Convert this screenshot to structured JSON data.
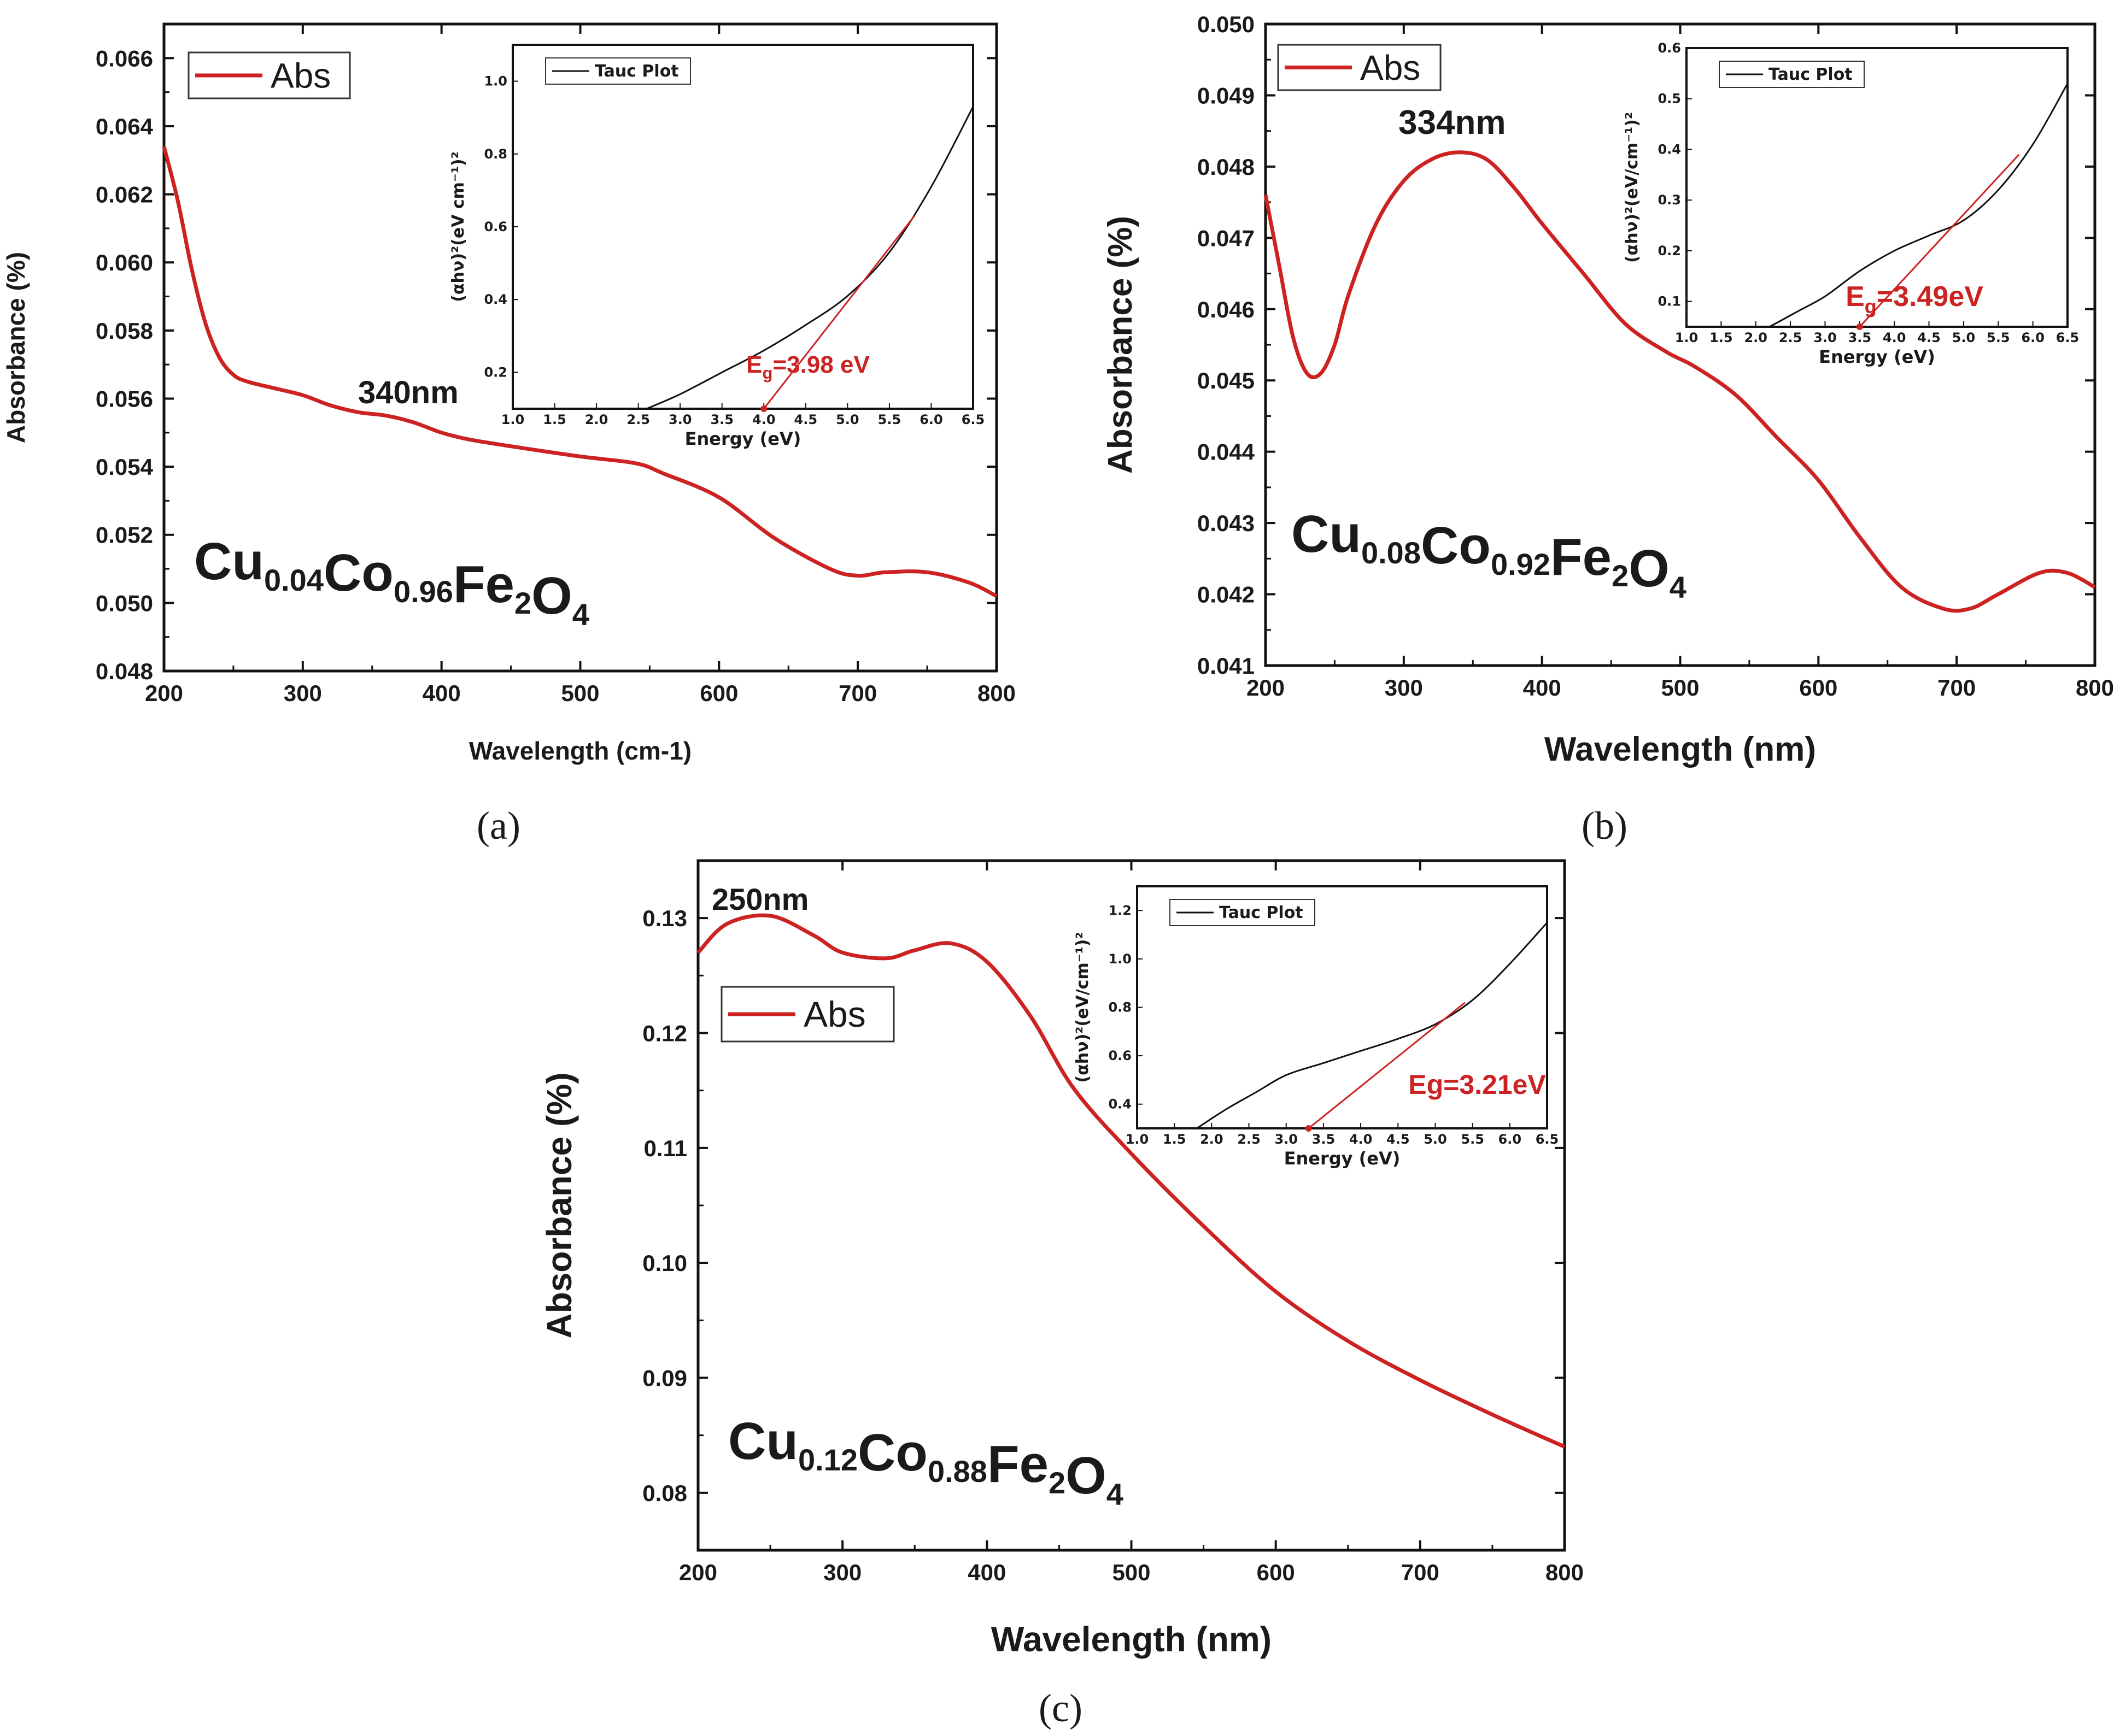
{
  "chart_data": [
    {
      "type": "line",
      "panel_label": "(a)",
      "xlabel": "Wavelength (cm-1)",
      "ylabel": "Absorbance (%)",
      "xlim": [
        200,
        800
      ],
      "ylim": [
        0.048,
        0.067
      ],
      "xticks": [
        "200",
        "300",
        "400",
        "500",
        "600",
        "700",
        "800"
      ],
      "yticks": [
        "0.048",
        "0.050",
        "0.052",
        "0.054",
        "0.056",
        "0.058",
        "0.060",
        "0.062",
        "0.064",
        "0.066"
      ],
      "legend": "Abs",
      "legend_position": "top-left",
      "series_color": "#cc2222",
      "peak_label": "340nm",
      "composition": {
        "a": "Cu",
        "a_sub": "0.04",
        "b": "Co",
        "b_sub": "0.96",
        "c": "Fe",
        "c_sub": "2",
        "d": "O",
        "d_sub": "4"
      },
      "x": [
        200,
        210,
        220,
        230,
        240,
        250,
        260,
        280,
        300,
        320,
        340,
        360,
        380,
        400,
        420,
        450,
        500,
        540,
        560,
        600,
        640,
        680,
        700,
        720,
        750,
        780,
        800
      ],
      "y": [
        0.0634,
        0.0618,
        0.0598,
        0.0582,
        0.0572,
        0.0567,
        0.0565,
        0.0563,
        0.0561,
        0.0558,
        0.0556,
        0.0555,
        0.0553,
        0.055,
        0.0548,
        0.0546,
        0.0543,
        0.0541,
        0.0538,
        0.0531,
        0.0519,
        0.051,
        0.0508,
        0.0509,
        0.0509,
        0.0506,
        0.0502
      ],
      "inset": {
        "legend": "Tauc Plot",
        "xlabel": "Energy (eV)",
        "ylabel_html": "(αhν)²(eV cm⁻¹)²",
        "xlim": [
          1.0,
          6.5
        ],
        "ylim": [
          0.1,
          1.1
        ],
        "xticks": [
          "1.0",
          "1.5",
          "2.0",
          "2.5",
          "3.0",
          "3.5",
          "4.0",
          "4.5",
          "5.0",
          "5.5",
          "6.0",
          "6.5"
        ],
        "yticks": [
          "0.2",
          "0.4",
          "0.6",
          "0.8",
          "1.0"
        ],
        "x": [
          2.6,
          3.0,
          3.5,
          4.0,
          4.5,
          5.0,
          5.5,
          6.0,
          6.5
        ],
        "y": [
          0.1,
          0.14,
          0.2,
          0.26,
          0.33,
          0.41,
          0.53,
          0.71,
          0.93
        ],
        "tangent": [
          [
            4.0,
            0.1
          ],
          [
            5.8,
            0.63
          ]
        ],
        "eg_main": "E",
        "eg_sub": "g",
        "eg_value": "=3.98 eV"
      }
    },
    {
      "type": "line",
      "panel_label": "(b)",
      "xlabel": "Wavelength (nm)",
      "ylabel": "Absorbance (%)",
      "xlim": [
        200,
        800
      ],
      "ylim": [
        0.041,
        0.05
      ],
      "xticks": [
        "200",
        "300",
        "400",
        "500",
        "600",
        "700",
        "800"
      ],
      "yticks": [
        "0.041",
        "0.042",
        "0.043",
        "0.044",
        "0.045",
        "0.046",
        "0.047",
        "0.048",
        "0.049",
        "0.050"
      ],
      "legend": "Abs",
      "legend_position": "top-left",
      "series_color": "#cc2222",
      "peak_label": "334nm",
      "composition": {
        "a": "Cu",
        "a_sub": "0.08",
        "b": "Co",
        "b_sub": "0.92",
        "c": "Fe",
        "c_sub": "2",
        "d": "O",
        "d_sub": "4"
      },
      "x": [
        200,
        210,
        220,
        230,
        240,
        250,
        260,
        280,
        300,
        320,
        340,
        360,
        380,
        400,
        430,
        460,
        490,
        510,
        540,
        570,
        600,
        630,
        660,
        690,
        710,
        730,
        760,
        780,
        800
      ],
      "y": [
        0.0476,
        0.0466,
        0.0456,
        0.0451,
        0.0451,
        0.0455,
        0.0462,
        0.0472,
        0.0478,
        0.0481,
        0.0482,
        0.0481,
        0.0477,
        0.0472,
        0.0465,
        0.0458,
        0.0454,
        0.0452,
        0.0448,
        0.0442,
        0.0436,
        0.0428,
        0.0421,
        0.0418,
        0.0418,
        0.042,
        0.0423,
        0.0423,
        0.0421
      ],
      "inset": {
        "legend": "Tauc Plot",
        "xlabel": "Energy (eV)",
        "ylabel_html": "(αhν)²(eV/cm⁻¹)²",
        "xlim": [
          1.0,
          6.5
        ],
        "ylim": [
          0.05,
          0.6
        ],
        "xticks": [
          "1.0",
          "1.5",
          "2.0",
          "2.5",
          "3.0",
          "3.5",
          "4.0",
          "4.5",
          "5.0",
          "5.5",
          "6.0",
          "6.5"
        ],
        "yticks": [
          "0.1",
          "0.2",
          "0.3",
          "0.4",
          "0.5",
          "0.6"
        ],
        "x": [
          2.2,
          2.6,
          3.0,
          3.5,
          4.0,
          4.5,
          5.0,
          5.5,
          6.0,
          6.5
        ],
        "y": [
          0.05,
          0.08,
          0.11,
          0.16,
          0.2,
          0.23,
          0.26,
          0.32,
          0.41,
          0.53
        ],
        "tangent": [
          [
            3.5,
            0.05
          ],
          [
            5.8,
            0.39
          ]
        ],
        "eg_main": "E",
        "eg_sub": "g",
        "eg_value": "=3.49eV"
      }
    },
    {
      "type": "line",
      "panel_label": "(c)",
      "xlabel": "Wavelength (nm)",
      "ylabel": "Absorbance (%)",
      "xlim": [
        200,
        800
      ],
      "ylim": [
        0.075,
        0.135
      ],
      "xticks": [
        "200",
        "300",
        "400",
        "500",
        "600",
        "700",
        "800"
      ],
      "yticks": [
        "0.08",
        "0.09",
        "0.10",
        "0.11",
        "0.12",
        "0.13"
      ],
      "legend": "Abs",
      "legend_position": "top-left",
      "series_color": "#cc2222",
      "peak_label": "250nm",
      "composition": {
        "a": "Cu",
        "a_sub": "0.12",
        "b": "Co",
        "b_sub": "0.88",
        "c": "Fe",
        "c_sub": "2",
        "d": "O",
        "d_sub": "4"
      },
      "x": [
        200,
        220,
        250,
        280,
        300,
        330,
        350,
        375,
        400,
        430,
        460,
        500,
        550,
        600,
        650,
        700,
        750,
        800
      ],
      "y": [
        0.127,
        0.1295,
        0.1302,
        0.1285,
        0.127,
        0.1265,
        0.1272,
        0.1278,
        0.1262,
        0.1215,
        0.1152,
        0.1095,
        0.1032,
        0.0975,
        0.0932,
        0.0898,
        0.0868,
        0.084
      ],
      "inset": {
        "legend": "Tauc Plot",
        "xlabel": "Energy (eV)",
        "ylabel_html": "(αhν)²(eV/cm⁻¹)²",
        "xlim": [
          1.0,
          6.5
        ],
        "ylim": [
          0.3,
          1.3
        ],
        "xticks": [
          "1.0",
          "1.5",
          "2.0",
          "2.5",
          "3.0",
          "3.5",
          "4.0",
          "4.5",
          "5.0",
          "5.5",
          "6.0",
          "6.5"
        ],
        "yticks": [
          "0.4",
          "0.6",
          "0.8",
          "1.0",
          "1.2"
        ],
        "x": [
          1.8,
          2.2,
          2.6,
          3.0,
          3.5,
          4.0,
          4.5,
          5.0,
          5.5,
          6.0,
          6.5
        ],
        "y": [
          0.3,
          0.38,
          0.45,
          0.52,
          0.57,
          0.62,
          0.67,
          0.73,
          0.83,
          0.98,
          1.15
        ],
        "tangent": [
          [
            3.3,
            0.3
          ],
          [
            5.4,
            0.82
          ]
        ],
        "eg_text": "Eg=3.21eV"
      }
    }
  ]
}
